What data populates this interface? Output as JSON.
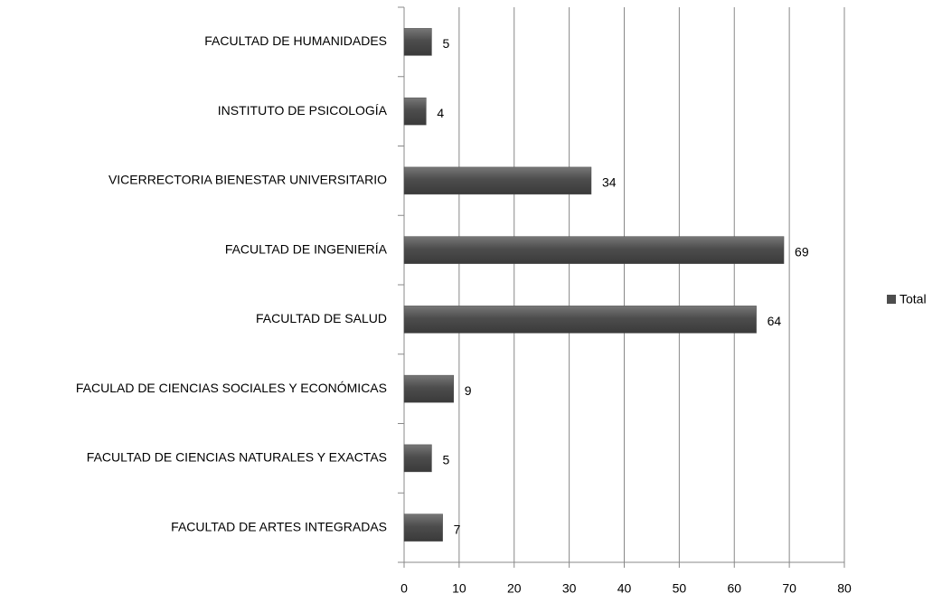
{
  "chart_data": {
    "type": "bar",
    "orientation": "horizontal",
    "categories": [
      "FACULTAD DE HUMANIDADES",
      "INSTITUTO  DE PSICOLOGÍA",
      "VICERRECTORIA  BIENESTAR  UNIVERSITARIO",
      "FACULTAD DE INGENIERÍA",
      "FACULTAD DE SALUD",
      "FACULAD DE CIENCIAS  SOCIALES Y ECONÓMICAS",
      "FACULTAD DE CIENCIAS  NATURALES  Y EXACTAS",
      "FACULTAD DE ARTES INTEGRADAS"
    ],
    "series": [
      {
        "name": "Total",
        "color": "#4d4d4d",
        "values": [
          5,
          4,
          34,
          69,
          64,
          9,
          5,
          7
        ]
      }
    ],
    "xlim": [
      0,
      80
    ],
    "xticks": [
      0,
      10,
      20,
      30,
      40,
      50,
      60,
      70,
      80
    ],
    "grid": true,
    "legend": "right",
    "data_labels": true
  }
}
